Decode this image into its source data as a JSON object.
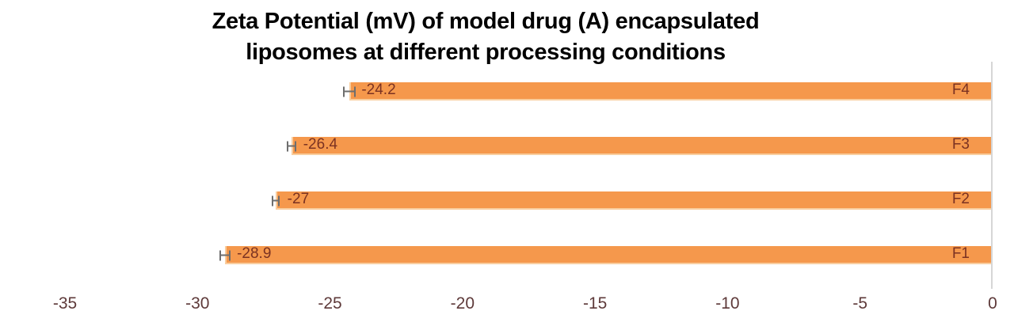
{
  "title": {
    "line1": "Zeta Potential (mV) of model drug (A) encapsulated",
    "line2": "liposomes at different processing conditions"
  },
  "chart_data": {
    "type": "bar",
    "orientation": "horizontal",
    "order": "top-to-bottom",
    "categories": [
      "F4",
      "F3",
      "F2",
      "F1"
    ],
    "values": [
      -24.2,
      -26.4,
      -27,
      -28.9
    ],
    "value_labels": [
      "-24.2",
      "-26.4",
      "-27",
      "-28.9"
    ],
    "errors": [
      0.24,
      0.18,
      0.15,
      0.2
    ],
    "x_ticks": [
      "-35",
      "-30",
      "-25",
      "-20",
      "-15",
      "-10",
      "-5",
      "0"
    ],
    "xlim": [
      -35,
      0
    ],
    "xlabel": "",
    "ylabel": "",
    "grid": false,
    "legend": null,
    "title": "Zeta Potential (mV) of model drug (A) encapsulated liposomes at different processing conditions",
    "colors": {
      "background": "#FFFFFF",
      "title": "#000000",
      "bar_fill": "#F5984C",
      "bar_edge": "#F9CE9F",
      "data_label": "#7B3222",
      "tick_label": "#5E3A3A",
      "axis_line": "#D6D6D6",
      "error_bar": "#6E6E6E"
    }
  }
}
